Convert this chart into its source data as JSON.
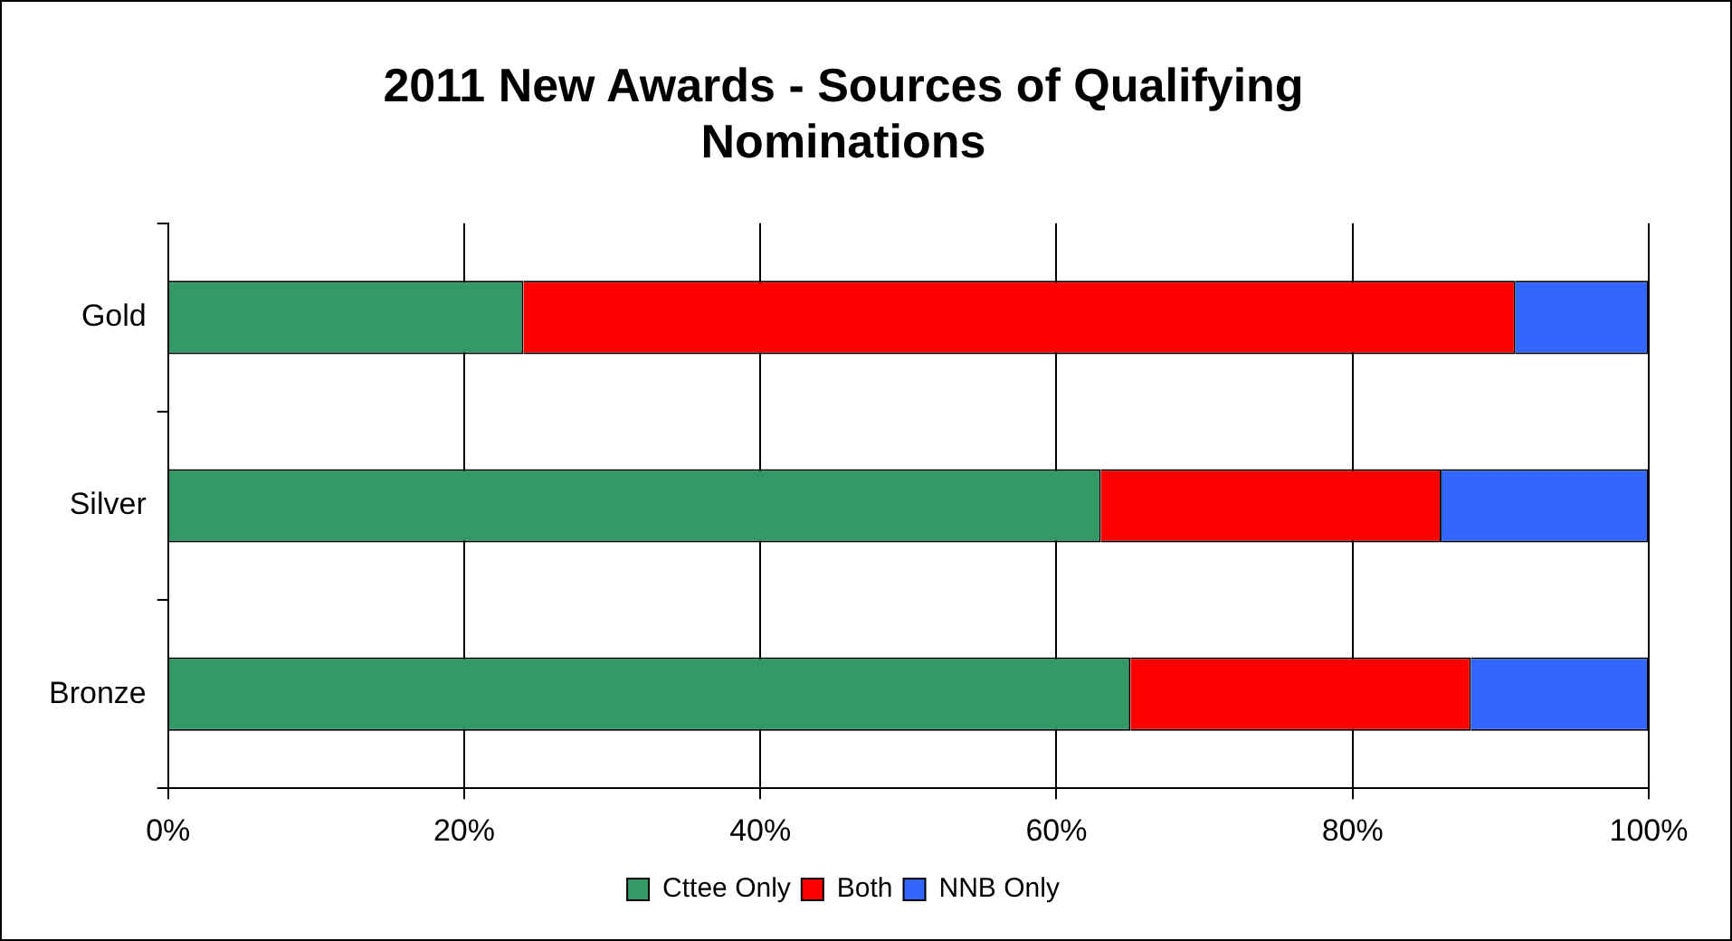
{
  "chart_data": {
    "type": "bar",
    "orientation": "horizontal",
    "stacked": true,
    "title": [
      "2011 New Awards - Sources of Qualifying",
      "Nominations"
    ],
    "categories": [
      "Gold",
      "Silver",
      "Bronze"
    ],
    "series": [
      {
        "name": "Cttee Only",
        "color": "#339966",
        "values": [
          24,
          63,
          65
        ]
      },
      {
        "name": "Both",
        "color": "#ff0000",
        "values": [
          67,
          23,
          23
        ]
      },
      {
        "name": "NNB Only",
        "color": "#3366ff",
        "values": [
          9,
          14,
          12
        ]
      }
    ],
    "xlim": [
      0,
      100
    ],
    "xticks": [
      {
        "value": 0,
        "label": "0%"
      },
      {
        "value": 20,
        "label": "20%"
      },
      {
        "value": 40,
        "label": "40%"
      },
      {
        "value": 60,
        "label": "60%"
      },
      {
        "value": 80,
        "label": "80%"
      },
      {
        "value": 100,
        "label": "100%"
      }
    ],
    "grid": "x",
    "legend": "bottom"
  }
}
